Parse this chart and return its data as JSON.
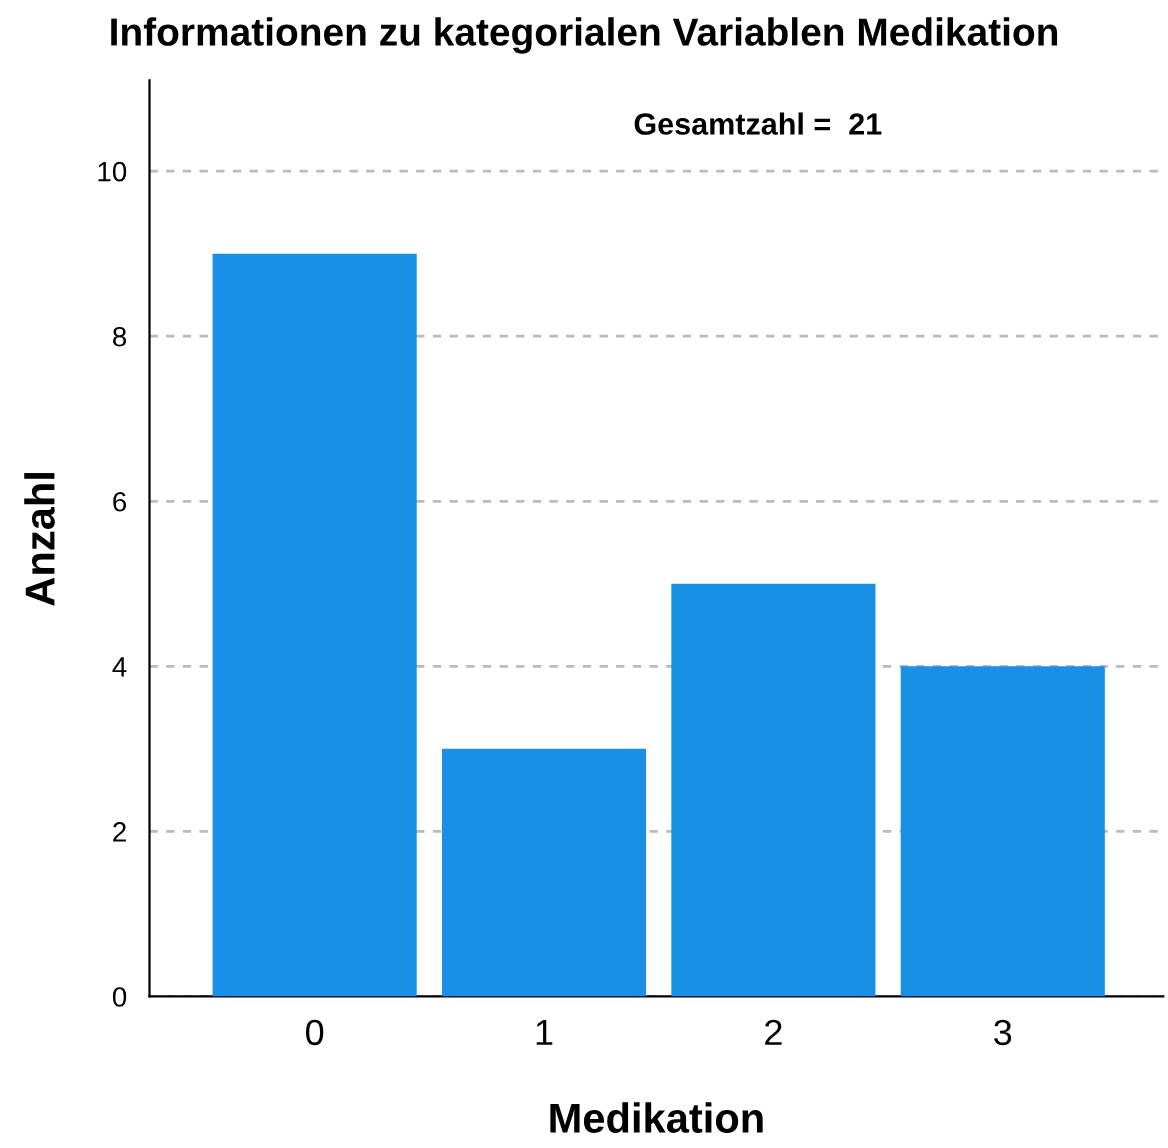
{
  "chart_data": {
    "type": "bar",
    "title": "Informationen zu kategorialen Variablen Medikation",
    "xlabel": "Medikation",
    "ylabel": "Anzahl",
    "categories": [
      "0",
      "1",
      "2",
      "3"
    ],
    "values": [
      9,
      3,
      5,
      4
    ],
    "color": "#1a8fe6",
    "ylim": [
      0,
      11.1
    ],
    "yticks": [
      0,
      2,
      4,
      6,
      8,
      10
    ],
    "grid": "y",
    "annotations": [
      "Gesamtzahl =  21"
    ]
  }
}
